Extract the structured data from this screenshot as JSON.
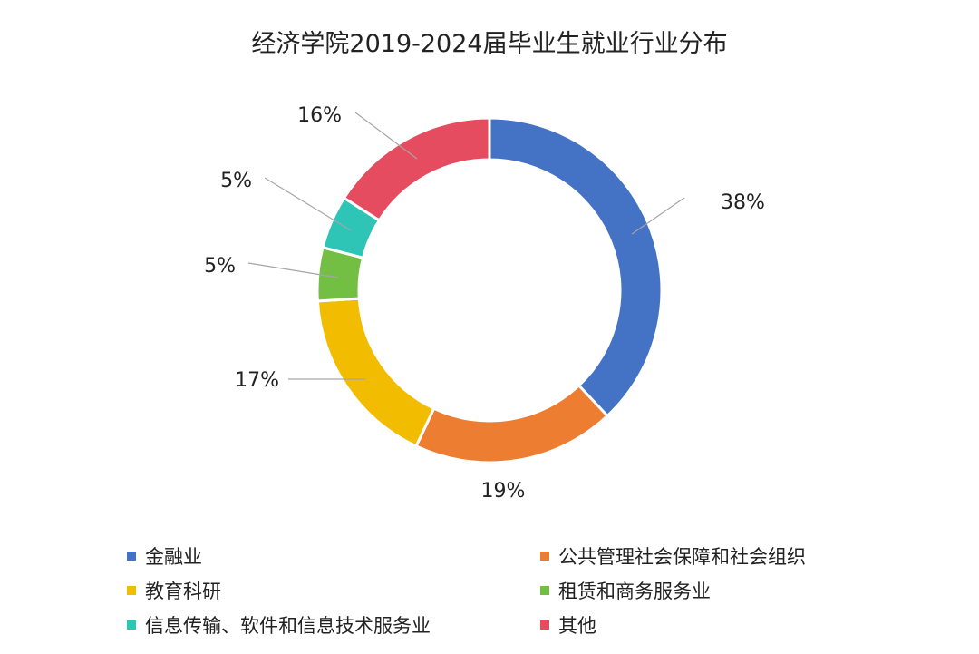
{
  "chart_data": {
    "type": "pie",
    "variant": "donut",
    "title": "经济学院2019-2024届毕业生就业行业分布",
    "series": [
      {
        "name": "金融业",
        "value": 38,
        "label": "38%",
        "color": "#4472C4"
      },
      {
        "name": "公共管理社会保障和社会组织",
        "value": 19,
        "label": "19%",
        "color": "#ED7D31"
      },
      {
        "name": "教育科研",
        "value": 17,
        "label": "17%",
        "color": "#F2BC00"
      },
      {
        "name": "租赁和商务服务业",
        "value": 5,
        "label": "5%",
        "color": "#72BF44"
      },
      {
        "name": "信息传输、软件和信息技术服务业",
        "value": 5,
        "label": "5%",
        "color": "#2EC4B6"
      },
      {
        "name": "其他",
        "value": 16,
        "label": "16%",
        "color": "#E64C5F"
      }
    ],
    "legend_position": "bottom"
  }
}
